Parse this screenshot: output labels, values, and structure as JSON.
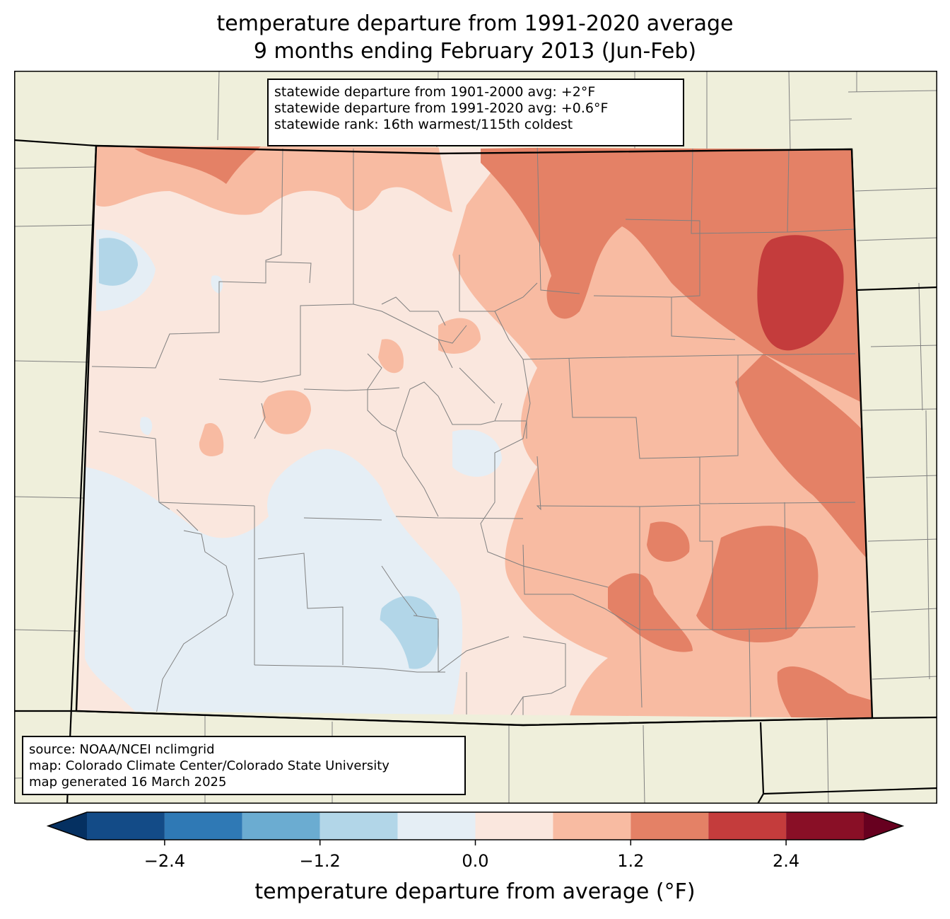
{
  "title": {
    "line1": "temperature departure from 1991-2020 average",
    "line2": "9 months ending February 2013 (Jun-Feb)"
  },
  "stats": {
    "line1": "statewide departure from 1901-2000 avg: +2°F",
    "line2": "statewide departure from 1991-2020 avg: +0.6°F",
    "line3": "statewide rank: 16th warmest/115th coldest"
  },
  "source": {
    "line1": "source: NOAA/NCEI nclimgrid",
    "line2": "map: Colorado Climate Center/Colorado State University",
    "line3": "map generated 16 March 2025"
  },
  "colorbar": {
    "label": "temperature departure from average (°F)",
    "min": -3.0,
    "max": 3.0,
    "ticks": [
      "−2.4",
      "−1.2",
      "0.0",
      "1.2",
      "2.4"
    ],
    "tick_values": [
      -2.4,
      -1.2,
      0.0,
      1.2,
      2.4
    ],
    "bins": [
      {
        "from": -3.0,
        "to": -2.4,
        "color": "#134b87"
      },
      {
        "from": -2.4,
        "to": -1.8,
        "color": "#2f79b5"
      },
      {
        "from": -1.8,
        "to": -1.2,
        "color": "#6bacd1"
      },
      {
        "from": -1.2,
        "to": -0.6,
        "color": "#b2d6e8"
      },
      {
        "from": -0.6,
        "to": 0.0,
        "color": "#e5eef5"
      },
      {
        "from": 0.0,
        "to": 0.6,
        "color": "#fae7de"
      },
      {
        "from": 0.6,
        "to": 1.2,
        "color": "#f8bba2"
      },
      {
        "from": 1.2,
        "to": 1.8,
        "color": "#e48166"
      },
      {
        "from": 1.8,
        "to": 2.4,
        "color": "#c43c3c"
      },
      {
        "from": 2.4,
        "to": 3.0,
        "color": "#890f26"
      }
    ],
    "under_color": "#053061",
    "over_color": "#67001f"
  },
  "colors": {
    "land_outside": "#efefdb",
    "county_lines": "#808080",
    "state_lines": "#000000"
  }
}
